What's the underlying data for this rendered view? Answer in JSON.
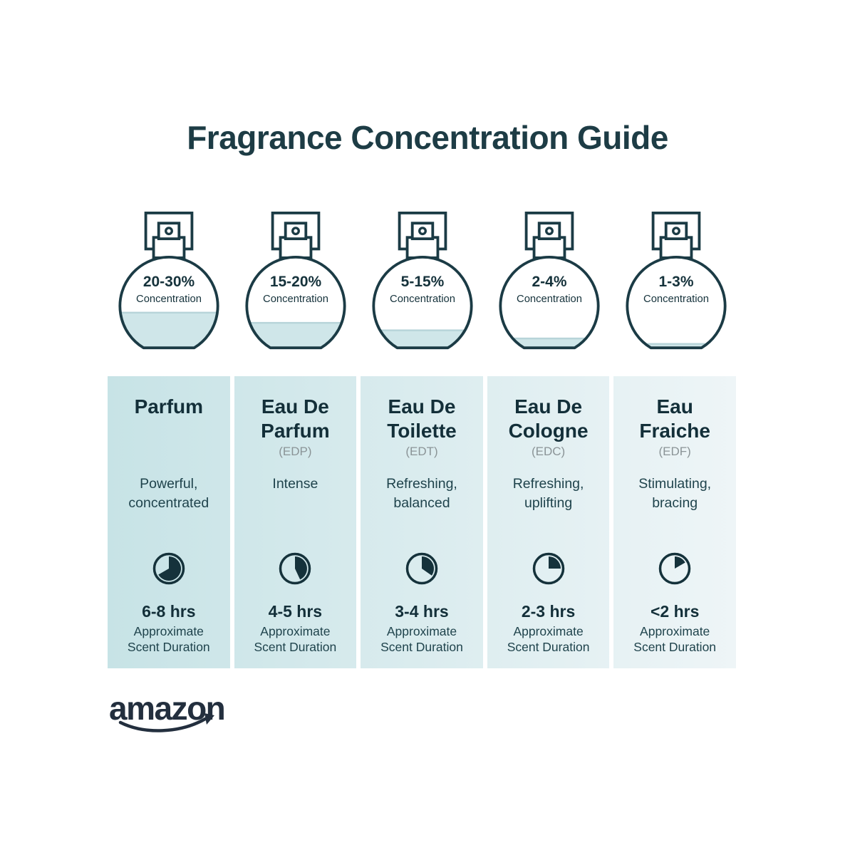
{
  "title": "Fragrance Concentration Guide",
  "brand": {
    "logo_text": "amazon"
  },
  "duration_label": "Approximate\nScent Duration",
  "concentration_label": "Concentration",
  "colors": {
    "dark_teal": "#1b3b45",
    "title_teal": "#1d3c45",
    "liquid_blue": "#cfe6e9",
    "liquid_surface": "#b7d4d9",
    "card_gradient_start": "#c7e3e6",
    "card_gradient_end": "#eef5f7",
    "abbr_gray": "#8b9497",
    "amazon_navy": "#232f3e"
  },
  "bottles": [
    {
      "percent": "20-30%",
      "fill_height": 53
    },
    {
      "percent": "15-20%",
      "fill_height": 38
    },
    {
      "percent": "5-15%",
      "fill_height": 27
    },
    {
      "percent": "2-4%",
      "fill_height": 15
    },
    {
      "percent": "1-3%",
      "fill_height": 7
    }
  ],
  "cards": [
    {
      "name": "Parfum",
      "abbr": "",
      "description": "Powerful,\nconcentrated",
      "hours": "6-8 hrs",
      "clock_angle_deg": 240
    },
    {
      "name": "Eau De\nParfum",
      "abbr": "(EDP)",
      "description": "Intense",
      "hours": "4-5 hrs",
      "clock_angle_deg": 155
    },
    {
      "name": "Eau De\nToilette",
      "abbr": "(EDT)",
      "description": "Refreshing,\nbalanced",
      "hours": "3-4 hrs",
      "clock_angle_deg": 125
    },
    {
      "name": "Eau De\nCologne",
      "abbr": "(EDC)",
      "description": "Refreshing,\nuplifting",
      "hours": "2-3 hrs",
      "clock_angle_deg": 90
    },
    {
      "name": "Eau\nFraiche",
      "abbr": "(EDF)",
      "description": "Stimulating,\nbracing",
      "hours": "<2 hrs",
      "clock_angle_deg": 60
    }
  ]
}
